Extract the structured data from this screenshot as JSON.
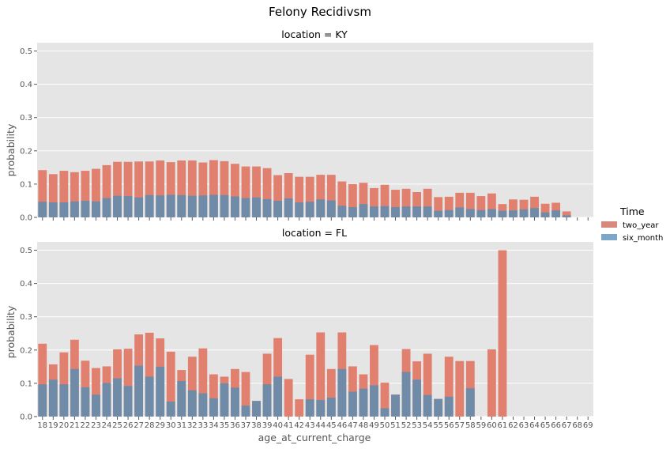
{
  "figure": {
    "title": "Felony Recidivsm",
    "xlabel": "age_at_current_charge",
    "ylabel": "probability",
    "legend_title": "Time",
    "legend_placement": "right-center"
  },
  "colors": {
    "panel_bg": "#e5e5e5",
    "grid": "#ffffff",
    "two_year": "#e2806f",
    "six_month": "#6f8ba8",
    "two_year_legend": "#d9887c",
    "six_month_legend": "#7ea6c8"
  },
  "chart_data": [
    {
      "type": "bar",
      "title": "location = KY",
      "xlabel": "",
      "ylabel": "probability",
      "ylim": [
        0,
        0.525
      ],
      "yticks": [
        "0.0",
        "0.1",
        "0.2",
        "0.3",
        "0.4",
        "0.5"
      ],
      "grid": true,
      "categories": [
        "18",
        "19",
        "20",
        "21",
        "22",
        "23",
        "24",
        "25",
        "26",
        "27",
        "28",
        "29",
        "30",
        "31",
        "32",
        "33",
        "34",
        "35",
        "36",
        "37",
        "38",
        "39",
        "40",
        "41",
        "42",
        "43",
        "44",
        "45",
        "46",
        "47",
        "48",
        "49",
        "50",
        "51",
        "52",
        "53",
        "54",
        "55",
        "56",
        "57",
        "58",
        "59",
        "60",
        "61",
        "62",
        "63",
        "64",
        "65",
        "66",
        "67",
        "68",
        "69"
      ],
      "series": [
        {
          "name": "two_year",
          "values": [
            0.142,
            0.13,
            0.14,
            0.136,
            0.14,
            0.146,
            0.157,
            0.167,
            0.167,
            0.168,
            0.168,
            0.171,
            0.166,
            0.171,
            0.171,
            0.165,
            0.172,
            0.169,
            0.161,
            0.153,
            0.153,
            0.148,
            0.127,
            0.133,
            0.122,
            0.122,
            0.128,
            0.128,
            0.108,
            0.1,
            0.104,
            0.088,
            0.098,
            0.083,
            0.086,
            0.076,
            0.086,
            0.061,
            0.062,
            0.074,
            0.074,
            0.064,
            0.072,
            0.04,
            0.054,
            0.053,
            0.062,
            0.041,
            0.044,
            0.018,
            0,
            0
          ]
        },
        {
          "name": "six_month",
          "values": [
            0.047,
            0.045,
            0.045,
            0.048,
            0.05,
            0.048,
            0.058,
            0.065,
            0.064,
            0.06,
            0.067,
            0.066,
            0.068,
            0.067,
            0.065,
            0.066,
            0.068,
            0.067,
            0.063,
            0.058,
            0.06,
            0.055,
            0.05,
            0.057,
            0.045,
            0.047,
            0.054,
            0.051,
            0.035,
            0.031,
            0.04,
            0.033,
            0.034,
            0.031,
            0.033,
            0.033,
            0.033,
            0.02,
            0.022,
            0.03,
            0.025,
            0.022,
            0.025,
            0.02,
            0.021,
            0.024,
            0.028,
            0.015,
            0.021,
            0.006,
            0,
            0
          ]
        }
      ]
    },
    {
      "type": "bar",
      "title": "location = FL",
      "xlabel": "age_at_current_charge",
      "ylabel": "probability",
      "ylim": [
        0,
        0.525
      ],
      "yticks": [
        "0.0",
        "0.1",
        "0.2",
        "0.3",
        "0.4",
        "0.5"
      ],
      "grid": true,
      "categories": [
        "18",
        "19",
        "20",
        "21",
        "22",
        "23",
        "24",
        "25",
        "26",
        "27",
        "28",
        "29",
        "30",
        "31",
        "32",
        "33",
        "34",
        "35",
        "36",
        "37",
        "38",
        "39",
        "40",
        "41",
        "42",
        "43",
        "44",
        "45",
        "46",
        "47",
        "48",
        "49",
        "50",
        "51",
        "52",
        "53",
        "54",
        "55",
        "56",
        "57",
        "58",
        "59",
        "60",
        "61",
        "62",
        "63",
        "64",
        "65",
        "66",
        "67",
        "68",
        "69"
      ],
      "series": [
        {
          "name": "two_year",
          "values": [
            0.219,
            0.157,
            0.193,
            0.231,
            0.168,
            0.146,
            0.151,
            0.202,
            0.204,
            0.247,
            0.252,
            0.235,
            0.195,
            0.14,
            0.18,
            0.205,
            0.127,
            0.12,
            0.143,
            0.134,
            0.047,
            0.189,
            0.236,
            0.113,
            0.052,
            0.186,
            0.253,
            0.143,
            0.253,
            0.151,
            0.127,
            0.215,
            0.102,
            0.066,
            0.203,
            0.166,
            0.189,
            0.053,
            0.18,
            0.167,
            0.167,
            0,
            0.202,
            0.5,
            0,
            0,
            0,
            0,
            0,
            0,
            0,
            0
          ]
        },
        {
          "name": "six_month",
          "values": [
            0.097,
            0.111,
            0.097,
            0.143,
            0.088,
            0.066,
            0.101,
            0.115,
            0.092,
            0.153,
            0.12,
            0.15,
            0.045,
            0.107,
            0.079,
            0.07,
            0.055,
            0.1,
            0.087,
            0.033,
            0.047,
            0.097,
            0.12,
            0,
            0,
            0.052,
            0.05,
            0.057,
            0.143,
            0.075,
            0.084,
            0.094,
            0.025,
            0.066,
            0.134,
            0.111,
            0.065,
            0.053,
            0.06,
            0,
            0.085,
            0,
            0,
            0,
            0,
            0,
            0,
            0,
            0,
            0,
            0,
            0
          ]
        }
      ]
    }
  ]
}
